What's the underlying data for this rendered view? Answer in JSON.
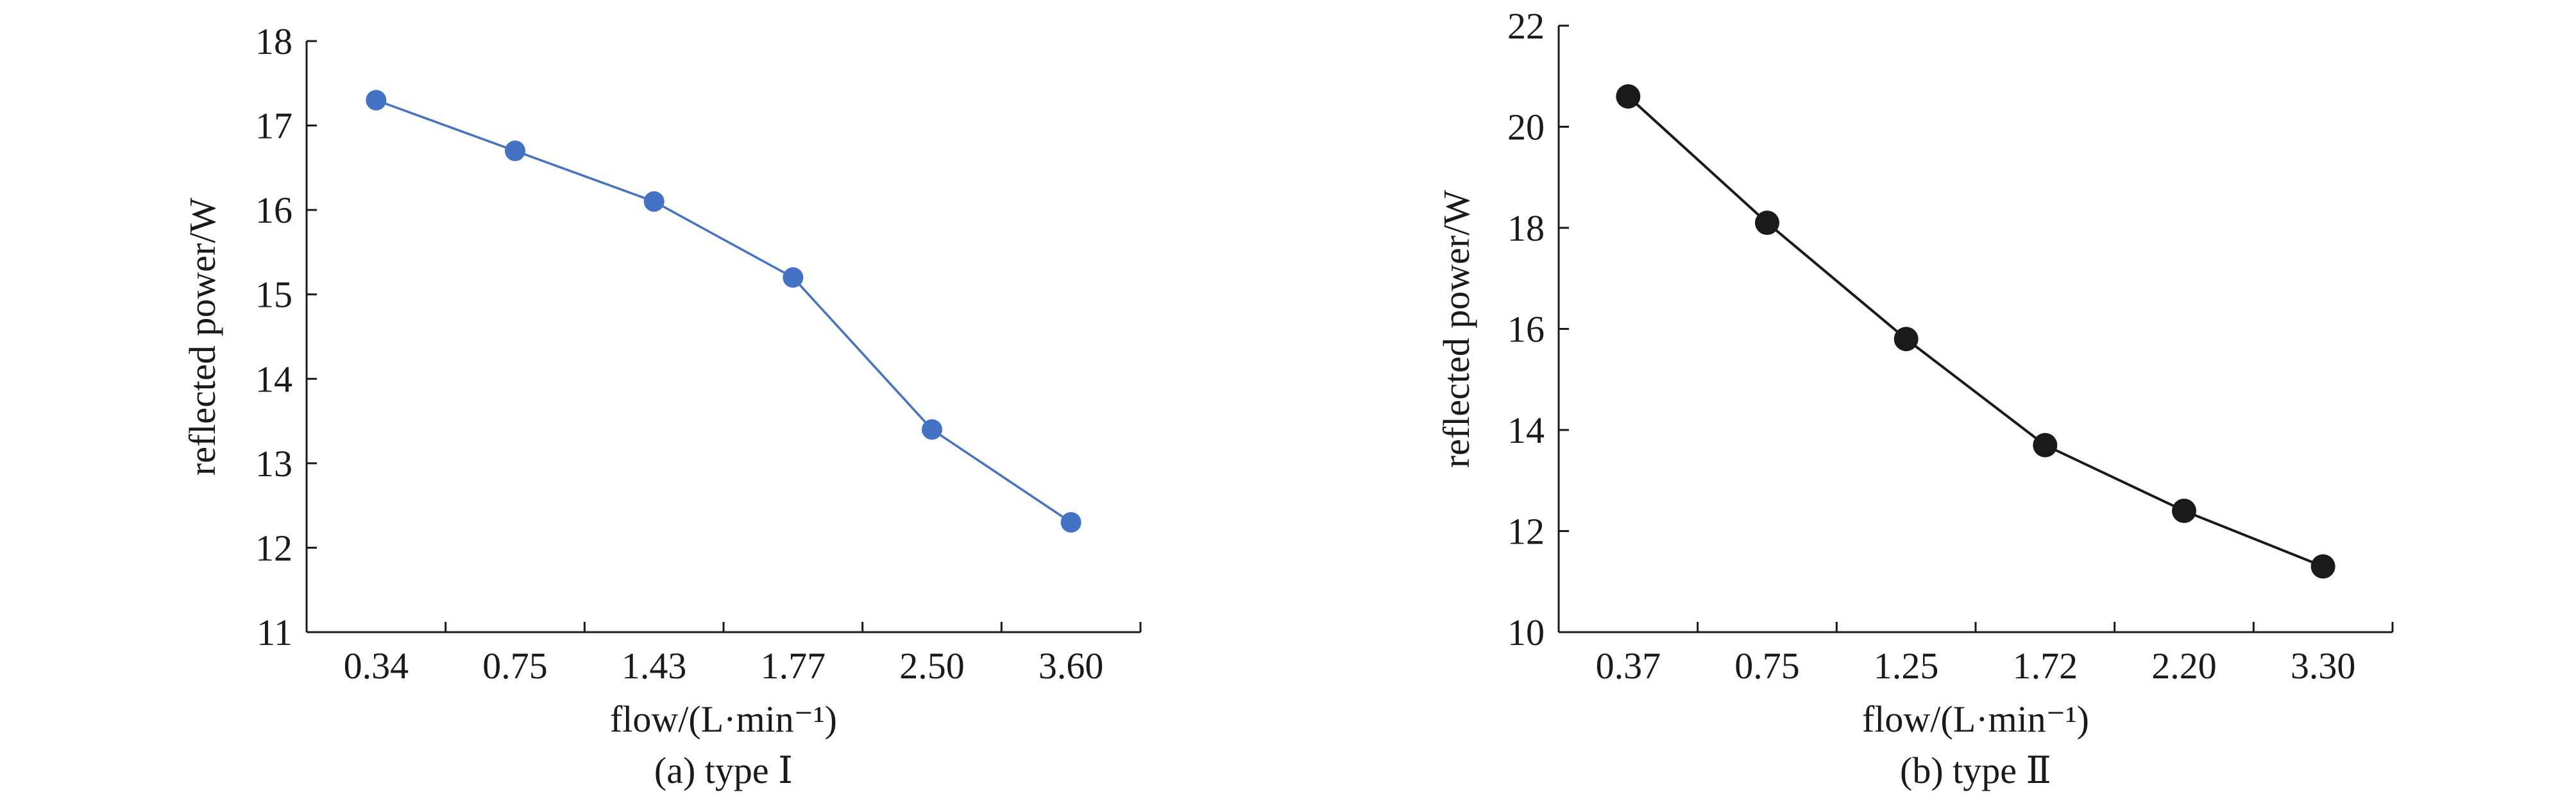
{
  "chart_data": [
    {
      "type": "line",
      "caption": "(a) type Ⅰ",
      "xlabel": "flow/(L·min⁻¹)",
      "ylabel": "reflected power/W",
      "categories": [
        "0.34",
        "0.75",
        "1.43",
        "1.77",
        "2.50",
        "3.60"
      ],
      "series": [
        {
          "values": [
            17.3,
            16.7,
            16.1,
            15.2,
            13.4,
            12.3
          ]
        }
      ],
      "ylim": [
        11,
        18
      ],
      "yticks": [
        "11",
        "12",
        "13",
        "14",
        "15",
        "16",
        "17",
        "18"
      ],
      "grid": false,
      "color": "#4472c4"
    },
    {
      "type": "line",
      "caption": "(b) type Ⅱ",
      "xlabel": "flow/(L·min⁻¹)",
      "ylabel": "reflected power/W",
      "categories": [
        "0.37",
        "0.75",
        "1.25",
        "1.72",
        "2.20",
        "3.30"
      ],
      "series": [
        {
          "values": [
            20.6,
            18.1,
            15.8,
            13.7,
            12.4,
            11.3
          ]
        }
      ],
      "ylim": [
        10,
        22
      ],
      "yticks": [
        "10",
        "12",
        "14",
        "16",
        "18",
        "20",
        "22"
      ],
      "grid": false,
      "color": "#1a1a1a"
    }
  ]
}
